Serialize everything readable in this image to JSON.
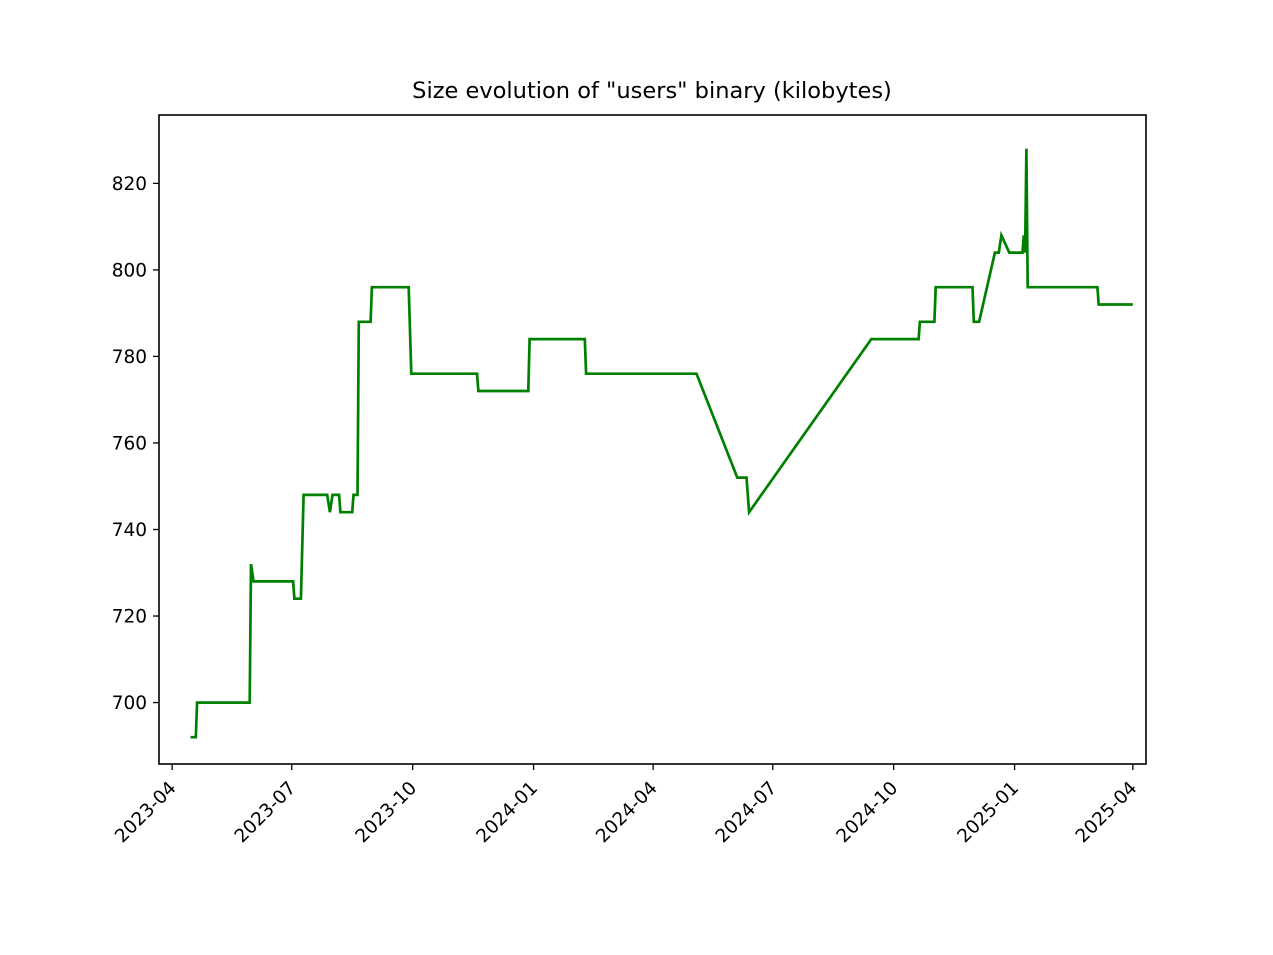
{
  "chart_data": {
    "type": "line",
    "title": "Size evolution of \"users\" binary (kilobytes)",
    "xlabel": "",
    "ylabel": "",
    "x_axis_type": "date",
    "xlim": [
      "2023-03-22",
      "2025-04-11"
    ],
    "ylim": [
      685.8,
      835.8
    ],
    "x_ticks": [
      "2023-04",
      "2023-07",
      "2023-10",
      "2024-01",
      "2024-04",
      "2024-07",
      "2024-10",
      "2025-01",
      "2025-04"
    ],
    "x_tick_dates": [
      "2023-04-01",
      "2023-07-01",
      "2023-10-01",
      "2024-01-01",
      "2024-04-01",
      "2024-07-01",
      "2024-10-01",
      "2025-01-01",
      "2025-04-01"
    ],
    "y_ticks": [
      700,
      720,
      740,
      760,
      780,
      800,
      820
    ],
    "grid": false,
    "legend": false,
    "series": [
      {
        "color": "#008000",
        "points": [
          [
            "2023-04-16",
            692
          ],
          [
            "2023-04-19",
            692
          ],
          [
            "2023-04-20",
            700
          ],
          [
            "2023-05-30",
            700
          ],
          [
            "2023-05-31",
            732
          ],
          [
            "2023-06-02",
            728
          ],
          [
            "2023-07-02",
            728
          ],
          [
            "2023-07-03",
            724
          ],
          [
            "2023-07-08",
            724
          ],
          [
            "2023-07-10",
            748
          ],
          [
            "2023-07-28",
            748
          ],
          [
            "2023-07-30",
            744
          ],
          [
            "2023-08-01",
            748
          ],
          [
            "2023-08-06",
            748
          ],
          [
            "2023-08-07",
            744
          ],
          [
            "2023-08-16",
            744
          ],
          [
            "2023-08-17",
            748
          ],
          [
            "2023-08-20",
            748
          ],
          [
            "2023-08-21",
            788
          ],
          [
            "2023-08-30",
            788
          ],
          [
            "2023-08-31",
            796
          ],
          [
            "2023-09-28",
            796
          ],
          [
            "2023-09-30",
            776
          ],
          [
            "2023-11-19",
            776
          ],
          [
            "2023-11-20",
            772
          ],
          [
            "2023-12-28",
            772
          ],
          [
            "2023-12-29",
            784
          ],
          [
            "2024-02-09",
            784
          ],
          [
            "2024-02-10",
            776
          ],
          [
            "2024-05-04",
            776
          ],
          [
            "2024-06-04",
            752
          ],
          [
            "2024-06-11",
            752
          ],
          [
            "2024-06-13",
            744
          ],
          [
            "2024-09-14",
            784
          ],
          [
            "2024-10-20",
            784
          ],
          [
            "2024-10-21",
            788
          ],
          [
            "2024-11-01",
            788
          ],
          [
            "2024-11-02",
            796
          ],
          [
            "2024-11-30",
            796
          ],
          [
            "2024-12-01",
            788
          ],
          [
            "2024-12-05",
            788
          ],
          [
            "2024-12-17",
            804
          ],
          [
            "2024-12-20",
            804
          ],
          [
            "2024-12-22",
            808
          ],
          [
            "2024-12-28",
            804
          ],
          [
            "2025-01-07",
            804
          ],
          [
            "2025-01-08",
            808
          ],
          [
            "2025-01-09",
            804
          ],
          [
            "2025-01-10",
            828
          ],
          [
            "2025-01-11",
            796
          ],
          [
            "2025-03-05",
            796
          ],
          [
            "2025-03-06",
            792
          ],
          [
            "2025-03-31",
            792
          ]
        ]
      }
    ]
  }
}
